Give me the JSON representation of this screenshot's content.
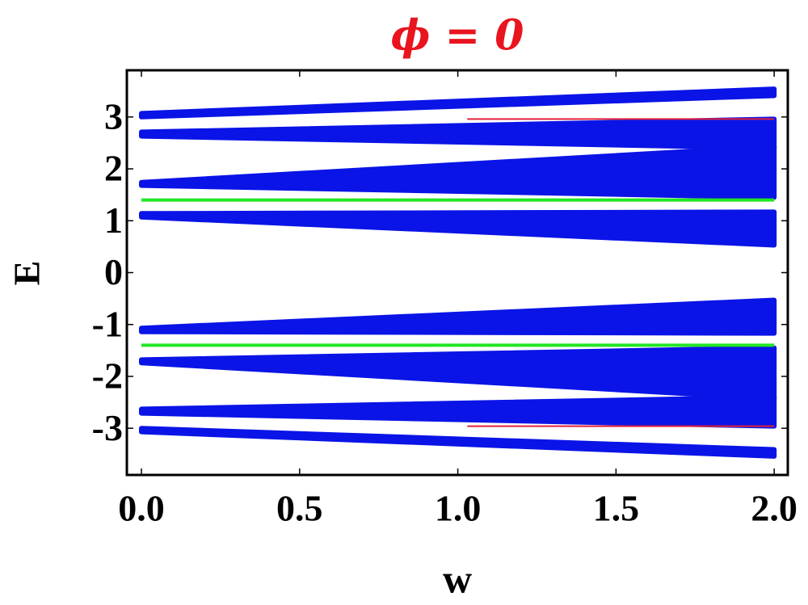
{
  "chart_data": {
    "type": "band",
    "title": "ϕ = 0",
    "xlabel": "w",
    "ylabel": "E",
    "xlim": [
      -0.046,
      2.043
    ],
    "ylim": [
      -3.9,
      3.9
    ],
    "xticks": [
      {
        "value": 0,
        "label": "0.0"
      },
      0.5,
      {
        "value": 1,
        "label": "1.0"
      },
      1.5,
      {
        "value": 2,
        "label": "2.0"
      }
    ],
    "yticks": [
      -3,
      -2,
      -1,
      0,
      1,
      2,
      3
    ],
    "color": "#0a14e6",
    "flat_color": "#22e622",
    "edge_color": "#e0203a",
    "x": [
      0,
      2
    ],
    "bands": [
      {
        "lower": [
          3.0,
          3.41
        ],
        "upper": [
          3.07,
          3.54
        ]
      },
      {
        "lower": [
          2.63,
          2.4
        ],
        "upper": [
          2.71,
          2.96
        ]
      },
      {
        "lower": [
          1.68,
          1.45
        ],
        "upper": [
          1.74,
          2.43
        ]
      },
      {
        "lower": [
          1.07,
          0.53
        ],
        "upper": [
          1.14,
          1.17
        ]
      },
      {
        "lower": [
          -1.14,
          -1.17
        ],
        "upper": [
          -1.07,
          -0.53
        ]
      },
      {
        "lower": [
          -1.74,
          -2.43
        ],
        "upper": [
          -1.68,
          -1.45
        ]
      },
      {
        "lower": [
          -2.71,
          -2.96
        ],
        "upper": [
          -2.63,
          -2.4
        ]
      },
      {
        "lower": [
          -3.07,
          -3.54
        ],
        "upper": [
          -3.0,
          -3.41
        ]
      }
    ],
    "flat_bands": [
      1.4,
      -1.4
    ],
    "edge_lines": [
      {
        "x": [
          1.03,
          2
        ],
        "y": [
          2.96,
          2.96
        ]
      },
      {
        "x": [
          1.03,
          2
        ],
        "y": [
          -2.96,
          -2.96
        ]
      }
    ]
  }
}
